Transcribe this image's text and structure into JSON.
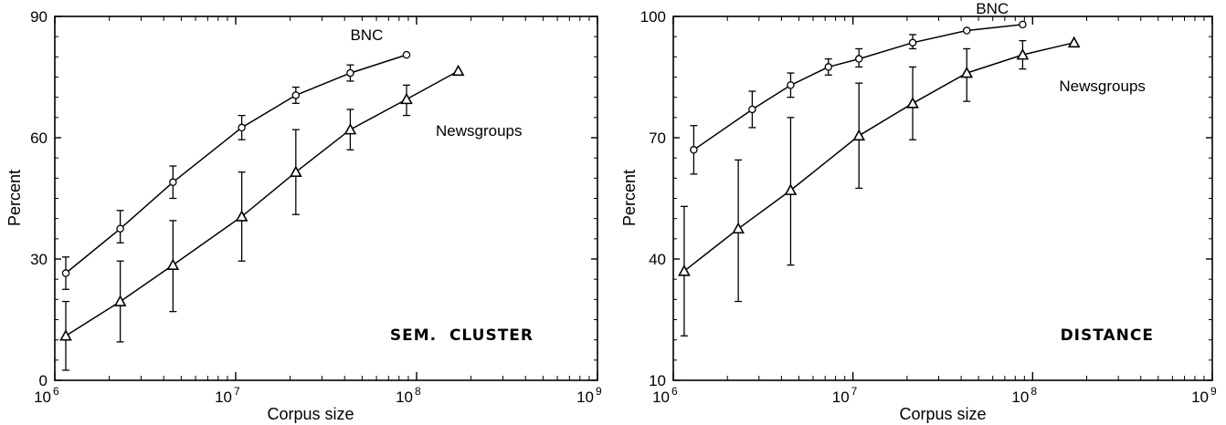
{
  "chart_data": [
    {
      "type": "line",
      "panel_title": "SEM.  CLUSTER",
      "xlabel": "Corpus size",
      "ylabel": "Percent",
      "xscale": "log",
      "xlim": [
        1000000,
        1000000000
      ],
      "ylim": [
        0,
        90
      ],
      "yticks": [
        "0",
        "30",
        "60",
        "90"
      ],
      "xtick_bases": [
        "10",
        "10",
        "10",
        "10"
      ],
      "xtick_exps": [
        "6",
        "7",
        "8",
        "9"
      ],
      "series": [
        {
          "name": "BNC",
          "marker": "circle",
          "x": [
            1150000,
            2300000,
            4500000,
            10800000,
            21500000,
            43000000,
            88000000
          ],
          "y": [
            26.5,
            37.5,
            49,
            62.5,
            70.5,
            76,
            80.5
          ],
          "err_low": [
            22.5,
            34,
            45,
            59.5,
            68.5,
            74,
            null
          ],
          "err_high": [
            30.5,
            42,
            53,
            65.5,
            72.5,
            78,
            null
          ]
        },
        {
          "name": "Newsgroups",
          "marker": "triangle",
          "x": [
            1150000,
            2300000,
            4500000,
            10800000,
            21500000,
            43000000,
            88000000,
            170000000
          ],
          "y": [
            11,
            19.5,
            28.5,
            40.5,
            51.5,
            62,
            69.5,
            76.5
          ],
          "err_low": [
            2.5,
            9.5,
            17,
            29.5,
            41,
            57,
            65.5,
            null
          ],
          "err_high": [
            19.5,
            29.5,
            39.5,
            51.5,
            62,
            67,
            73,
            null
          ]
        }
      ]
    },
    {
      "type": "line",
      "panel_title": "DISTANCE",
      "xlabel": "Corpus size",
      "ylabel": "Percent",
      "xscale": "log",
      "xlim": [
        1000000,
        1000000000
      ],
      "ylim": [
        10,
        100
      ],
      "yticks": [
        "10",
        "40",
        "70",
        "100"
      ],
      "xtick_bases": [
        "10",
        "10",
        "10",
        "10"
      ],
      "xtick_exps": [
        "6",
        "7",
        "8",
        "9"
      ],
      "series": [
        {
          "name": "BNC",
          "marker": "circle",
          "x": [
            1300000,
            2750000,
            4500000,
            7300000,
            10800000,
            21500000,
            43000000,
            88000000
          ],
          "y": [
            67,
            77,
            83,
            87.5,
            89.5,
            93.5,
            96.5,
            98
          ],
          "err_low": [
            61,
            72.5,
            80,
            85.5,
            87.5,
            92,
            null,
            null
          ],
          "err_high": [
            73,
            81.5,
            86,
            89.5,
            92,
            95.5,
            null,
            null
          ]
        },
        {
          "name": "Newsgroups",
          "marker": "triangle",
          "x": [
            1150000,
            2300000,
            4500000,
            10800000,
            21500000,
            43000000,
            88000000,
            170000000
          ],
          "y": [
            37,
            47.5,
            57,
            70.5,
            78.5,
            86,
            90.5,
            93.5
          ],
          "err_low": [
            21,
            29.5,
            38.5,
            57.5,
            69.5,
            79,
            87,
            null
          ],
          "err_high": [
            53,
            64.5,
            75,
            83.5,
            87.5,
            92,
            94,
            null
          ]
        }
      ]
    }
  ]
}
